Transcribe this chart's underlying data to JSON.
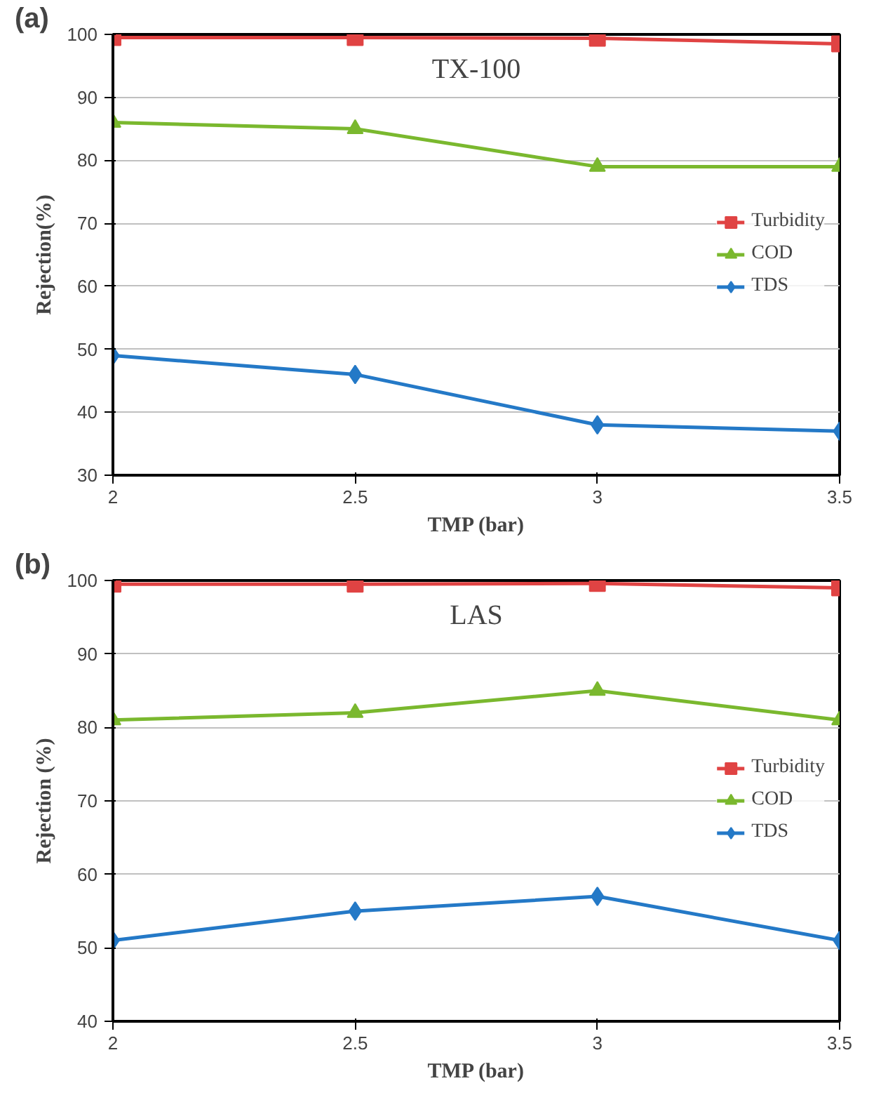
{
  "chart_data": [
    {
      "type": "line",
      "annotations": [
        "(a)",
        "TX-100"
      ],
      "xlabel": "TMP (bar)",
      "ylabel": "Rejection(%)",
      "x": [
        2,
        2.5,
        3,
        3.5
      ],
      "xlim": [
        2,
        3.5
      ],
      "xticks": [
        2,
        2.5,
        3,
        3.5
      ],
      "ylim": [
        30,
        100
      ],
      "yticks": [
        30,
        40,
        50,
        60,
        70,
        80,
        90,
        100
      ],
      "grid": "y",
      "legend": "right",
      "series": [
        {
          "name": "Turbidity",
          "color": "#e04343",
          "marker": "square",
          "values": [
            99.5,
            99.5,
            99.4,
            98.5
          ]
        },
        {
          "name": "COD",
          "color": "#7ab82e",
          "marker": "triangle",
          "values": [
            86,
            85,
            79,
            79
          ]
        },
        {
          "name": "TDS",
          "color": "#2479c7",
          "marker": "diamond",
          "values": [
            49,
            46,
            38,
            37
          ]
        }
      ]
    },
    {
      "type": "line",
      "annotations": [
        "(b)",
        "LAS"
      ],
      "xlabel": "TMP (bar)",
      "ylabel": "Rejection (%)",
      "x": [
        2,
        2.5,
        3,
        3.5
      ],
      "xlim": [
        2,
        3.5
      ],
      "xticks": [
        2,
        2.5,
        3,
        3.5
      ],
      "ylim": [
        40,
        100
      ],
      "yticks": [
        40,
        50,
        60,
        70,
        80,
        90,
        100
      ],
      "grid": "y",
      "legend": "right",
      "series": [
        {
          "name": "Turbidity",
          "color": "#e04343",
          "marker": "square",
          "values": [
            99.5,
            99.5,
            99.6,
            99
          ]
        },
        {
          "name": "COD",
          "color": "#7ab82e",
          "marker": "triangle",
          "values": [
            81,
            82,
            85,
            81
          ]
        },
        {
          "name": "TDS",
          "color": "#2479c7",
          "marker": "diamond",
          "values": [
            51,
            55,
            57,
            51
          ]
        }
      ]
    }
  ]
}
